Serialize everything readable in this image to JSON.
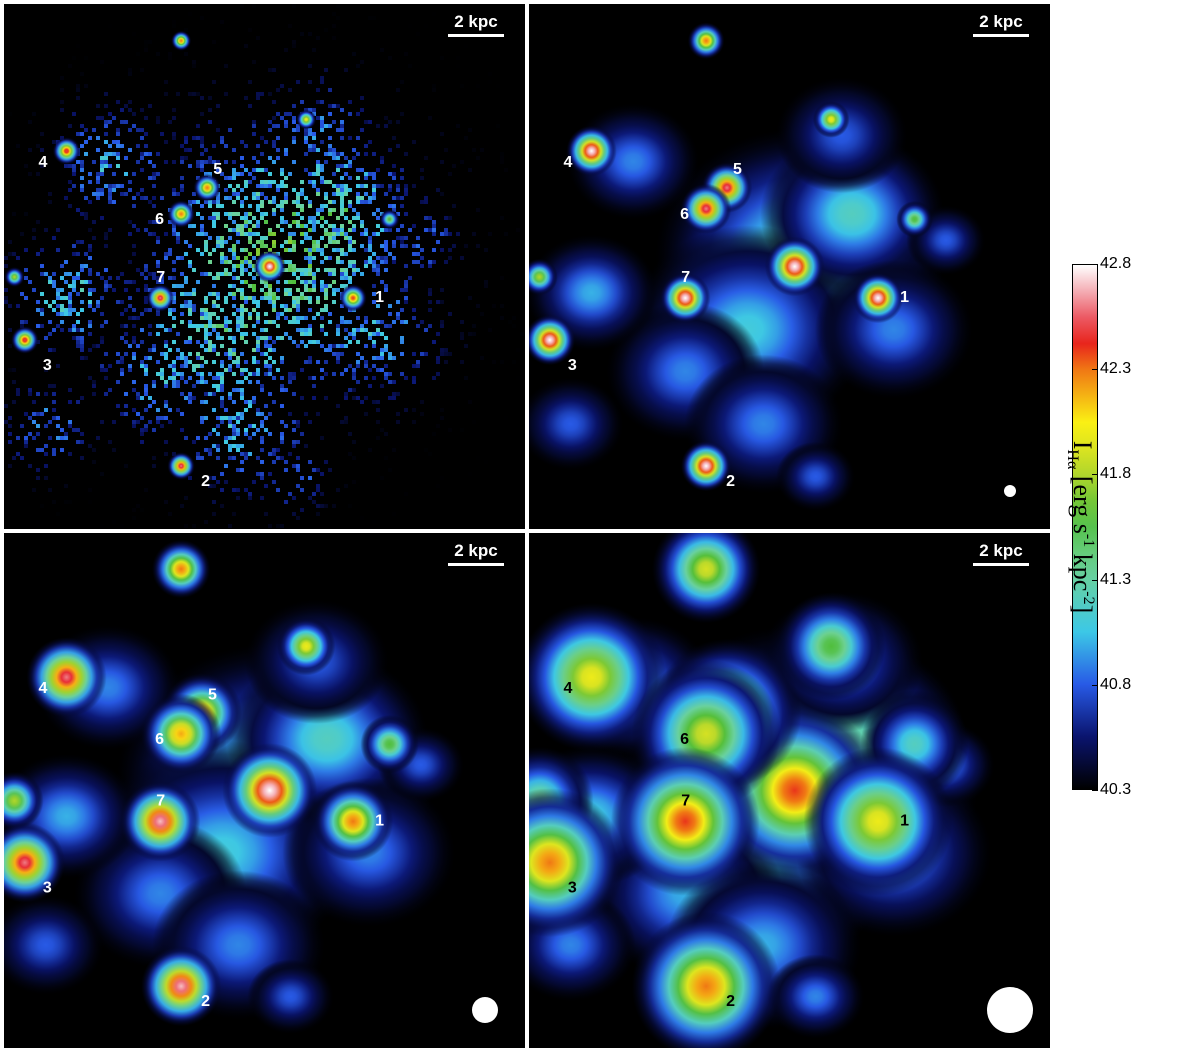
{
  "chart_data": {
    "type": "heatmap",
    "scale_label": "2 kpc",
    "colorbar": {
      "min": 40.3,
      "max": 42.8,
      "ticks": [
        "42.8",
        "42.3",
        "41.8",
        "41.3",
        "40.8",
        "40.3"
      ],
      "label_main": "I",
      "label_sub": "Hα",
      "label_units": " [erg s",
      "label_exp1": "-1",
      "label_units2": " kpc",
      "label_exp2": "-2",
      "label_close": "]"
    },
    "panels": [
      {
        "style": "pixelated",
        "beam": null,
        "regions": [
          {
            "id": "1",
            "x": 0.67,
            "y": 0.56,
            "peak": 42.4
          },
          {
            "id": "2",
            "x": 0.34,
            "y": 0.88,
            "peak": 42.6
          },
          {
            "id": "3",
            "x": 0.04,
            "y": 0.64,
            "peak": 42.5
          },
          {
            "id": "4",
            "x": 0.12,
            "y": 0.28,
            "peak": 42.5
          },
          {
            "id": "5",
            "x": 0.39,
            "y": 0.35,
            "peak": 42.3
          },
          {
            "id": "6",
            "x": 0.34,
            "y": 0.4,
            "peak": 42.3
          },
          {
            "id": "7",
            "x": 0.3,
            "y": 0.56,
            "peak": 42.6
          }
        ]
      },
      {
        "style": "smooth-small",
        "beam": "small",
        "regions": [
          {
            "id": "1",
            "x": 0.67,
            "y": 0.56,
            "peak": 42.8
          },
          {
            "id": "2",
            "x": 0.34,
            "y": 0.88,
            "peak": 42.8
          },
          {
            "id": "3",
            "x": 0.04,
            "y": 0.64,
            "peak": 42.8
          },
          {
            "id": "4",
            "x": 0.12,
            "y": 0.28,
            "peak": 42.8
          },
          {
            "id": "5",
            "x": 0.38,
            "y": 0.35,
            "peak": 42.6
          },
          {
            "id": "6",
            "x": 0.34,
            "y": 0.39,
            "peak": 42.6
          },
          {
            "id": "7",
            "x": 0.3,
            "y": 0.56,
            "peak": 42.8
          }
        ]
      },
      {
        "style": "smooth-medium",
        "beam": "medium",
        "regions": [
          {
            "id": "1",
            "x": 0.67,
            "y": 0.56,
            "peak": 42.3
          },
          {
            "id": "2",
            "x": 0.34,
            "y": 0.88,
            "peak": 42.7
          },
          {
            "id": "3",
            "x": 0.04,
            "y": 0.64,
            "peak": 42.6
          },
          {
            "id": "4",
            "x": 0.12,
            "y": 0.28,
            "peak": 42.6
          },
          {
            "id": "5",
            "x": 0.38,
            "y": 0.35,
            "peak": 42.2
          },
          {
            "id": "6",
            "x": 0.34,
            "y": 0.39,
            "peak": 42.2
          },
          {
            "id": "7",
            "x": 0.3,
            "y": 0.56,
            "peak": 42.7
          }
        ]
      },
      {
        "style": "smooth-large",
        "beam": "large",
        "regions": [
          {
            "id": "1",
            "x": 0.67,
            "y": 0.56,
            "peak": 42.0
          },
          {
            "id": "2",
            "x": 0.34,
            "y": 0.88,
            "peak": 42.3
          },
          {
            "id": "3",
            "x": 0.04,
            "y": 0.64,
            "peak": 42.3
          },
          {
            "id": "4",
            "x": 0.12,
            "y": 0.28,
            "peak": 42.0
          },
          {
            "id": "5",
            "x": 0.38,
            "y": 0.35,
            "peak": 41.9
          },
          {
            "id": "6",
            "x": 0.34,
            "y": 0.39,
            "peak": 41.9
          },
          {
            "id": "7",
            "x": 0.3,
            "y": 0.56,
            "peak": 42.4
          }
        ]
      }
    ]
  }
}
